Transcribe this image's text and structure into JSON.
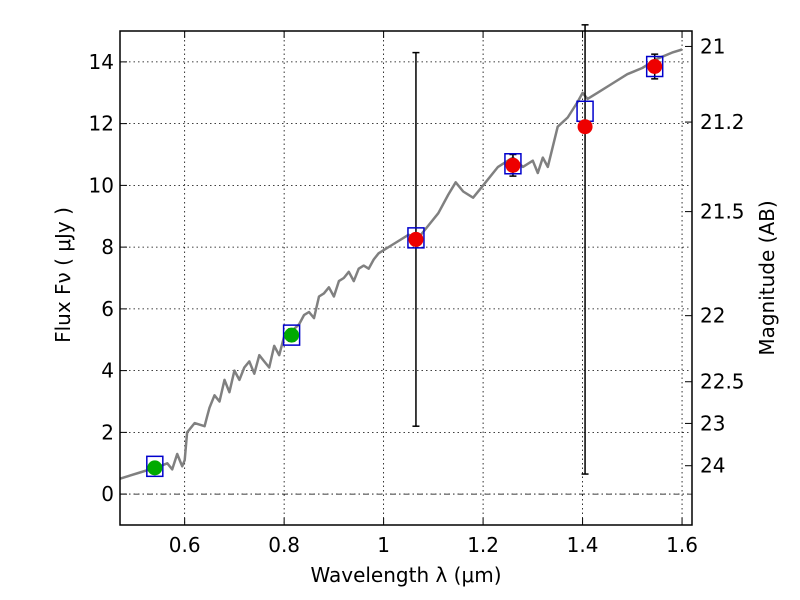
{
  "chart_data": {
    "type": "scatter",
    "title": "",
    "xlabel": "Wavelength  λ (μm)",
    "ylabel": "Flux  Fν  ( μJy )",
    "ylabel_right": "Magnitude (AB)",
    "xlim": [
      0.47,
      1.62
    ],
    "ylim": [
      -1,
      15
    ],
    "grid": true,
    "x_ticks": [
      0.6,
      0.8,
      1.0,
      1.2,
      1.4,
      1.6
    ],
    "x_tick_labels": [
      "0.6",
      "0.8",
      "1",
      "1.2",
      "1.4",
      "1.6"
    ],
    "y_ticks": [
      0,
      2,
      4,
      6,
      8,
      10,
      12,
      14
    ],
    "y_tick_labels": [
      "0",
      "2",
      "4",
      "6",
      "8",
      "10",
      "12",
      "14"
    ],
    "right_axis_ticks": [
      {
        "label": "21",
        "flux": 14.5
      },
      {
        "label": "21.2",
        "flux": 12.05
      },
      {
        "label": "21.5",
        "flux": 9.15
      },
      {
        "label": "22",
        "flux": 5.78
      },
      {
        "label": "22.5",
        "flux": 3.64
      },
      {
        "label": "23",
        "flux": 2.29
      },
      {
        "label": "24",
        "flux": 0.92
      }
    ],
    "model_spectrum": {
      "color": "#808080",
      "x": [
        0.47,
        0.49,
        0.51,
        0.53,
        0.55,
        0.565,
        0.575,
        0.585,
        0.595,
        0.6,
        0.605,
        0.61,
        0.62,
        0.64,
        0.645,
        0.65,
        0.66,
        0.67,
        0.68,
        0.69,
        0.7,
        0.71,
        0.72,
        0.73,
        0.74,
        0.75,
        0.76,
        0.77,
        0.78,
        0.79,
        0.8,
        0.81,
        0.83,
        0.84,
        0.85,
        0.86,
        0.87,
        0.88,
        0.89,
        0.9,
        0.91,
        0.92,
        0.93,
        0.94,
        0.95,
        0.96,
        0.97,
        0.98,
        0.99,
        1.0,
        1.02,
        1.05,
        1.07,
        1.09,
        1.11,
        1.13,
        1.145,
        1.16,
        1.18,
        1.2,
        1.23,
        1.26,
        1.28,
        1.3,
        1.31,
        1.32,
        1.33,
        1.35,
        1.37,
        1.39,
        1.4,
        1.41,
        1.43,
        1.46,
        1.49,
        1.52,
        1.55,
        1.58,
        1.6
      ],
      "y": [
        0.5,
        0.6,
        0.7,
        0.8,
        0.9,
        1.0,
        0.8,
        1.3,
        0.9,
        1.1,
        2.0,
        2.1,
        2.3,
        2.2,
        2.5,
        2.8,
        3.2,
        3.0,
        3.7,
        3.3,
        4.0,
        3.7,
        4.1,
        4.3,
        3.9,
        4.5,
        4.3,
        4.1,
        4.8,
        4.5,
        5.1,
        5.2,
        5.5,
        5.8,
        5.9,
        5.7,
        6.4,
        6.5,
        6.7,
        6.4,
        6.9,
        7.0,
        7.2,
        6.9,
        7.3,
        7.4,
        7.3,
        7.6,
        7.8,
        7.9,
        8.1,
        8.4,
        8.3,
        8.7,
        9.1,
        9.7,
        10.1,
        9.8,
        9.6,
        10.0,
        10.6,
        10.9,
        10.6,
        10.8,
        10.4,
        10.9,
        10.6,
        11.9,
        12.2,
        12.7,
        13.0,
        12.8,
        13.0,
        13.3,
        13.6,
        13.8,
        14.1,
        14.3,
        14.4
      ]
    },
    "series": [
      {
        "marker": "square",
        "color": "#0000cc",
        "x": [
          0.54,
          0.815,
          1.065,
          1.26,
          1.405,
          1.545
        ],
        "y": [
          0.9,
          5.15,
          8.3,
          10.7,
          12.4,
          13.85
        ]
      },
      {
        "marker": "circle",
        "color": "#00aa00",
        "x": [
          0.54,
          0.815
        ],
        "y": [
          0.85,
          5.15
        ],
        "yerr_low": [
          0.8,
          4.95
        ],
        "yerr_high": [
          0.9,
          5.35
        ]
      },
      {
        "marker": "circle",
        "color": "#ee0000",
        "x": [
          1.065,
          1.26,
          1.405,
          1.545
        ],
        "y": [
          8.25,
          10.65,
          11.9,
          13.85
        ],
        "yerr_low": [
          2.2,
          10.3,
          0.65,
          13.45
        ],
        "yerr_high": [
          14.3,
          11.0,
          15.2,
          14.25
        ]
      }
    ]
  }
}
